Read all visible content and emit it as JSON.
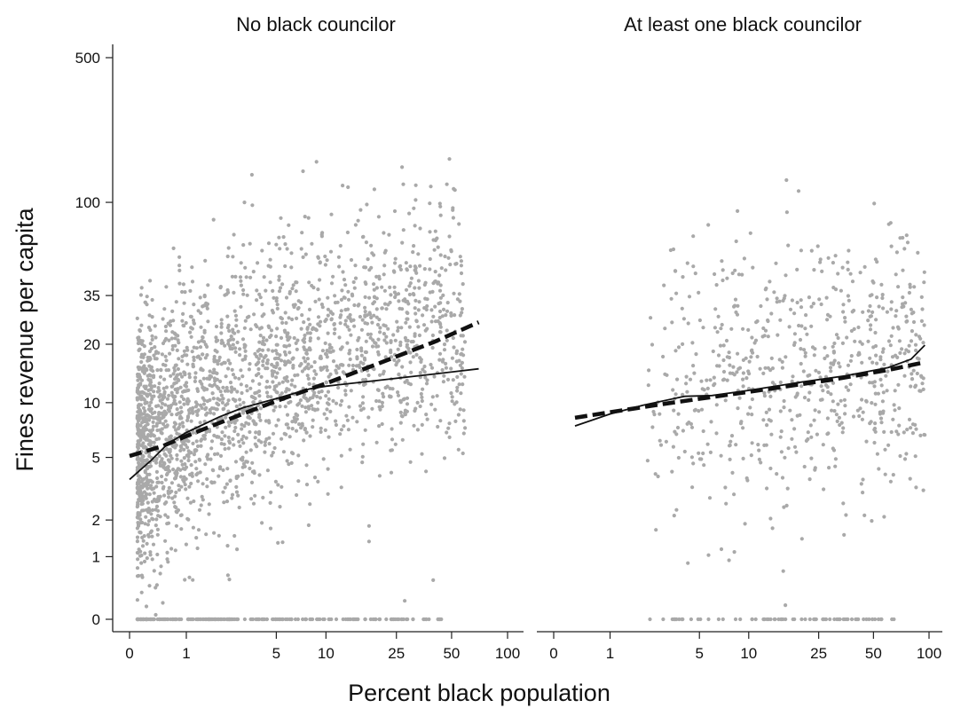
{
  "chart_data": {
    "type": "scatter",
    "ylabel": "Fines revenue per capita",
    "xlabel": "Percent black population",
    "y_scale": "log",
    "x_scale": "log",
    "x_ticks": [
      0,
      1,
      5,
      10,
      25,
      50,
      100
    ],
    "y_ticks": [
      0,
      1,
      2,
      5,
      10,
      20,
      35,
      100,
      500
    ],
    "point_color": "#a9a9a9",
    "line_color": "#111111",
    "panels": [
      {
        "title": "No black councilor",
        "solid_fit": {
          "x": [
            0,
            0.3,
            0.6,
            1,
            2,
            3,
            5,
            8,
            10,
            20,
            40,
            70
          ],
          "y": [
            3.7,
            4.8,
            6,
            6.9,
            8.4,
            9.4,
            10.5,
            11.8,
            12.2,
            13.1,
            14.1,
            15
          ]
        },
        "dashed_fit": {
          "x": [
            0,
            0.5,
            1,
            2,
            5,
            10,
            20,
            40,
            70
          ],
          "y": [
            5.1,
            5.8,
            6.6,
            7.8,
            10.2,
            12.6,
            16,
            20.5,
            25.8
          ]
        }
      },
      {
        "title": "At least one black councilor",
        "solid_fit": {
          "x": [
            0.3,
            1,
            2,
            4,
            6,
            10,
            20,
            35,
            60,
            80,
            95
          ],
          "y": [
            7.5,
            8.7,
            9.7,
            10.8,
            10.9,
            11.6,
            12.8,
            13.8,
            15.2,
            16.8,
            19.8
          ]
        },
        "dashed_fit": {
          "x": [
            0.3,
            1,
            3,
            10,
            30,
            60,
            95
          ],
          "y": [
            8.3,
            8.9,
            9.9,
            11.4,
            13.2,
            14.8,
            16.2
          ]
        }
      }
    ]
  }
}
